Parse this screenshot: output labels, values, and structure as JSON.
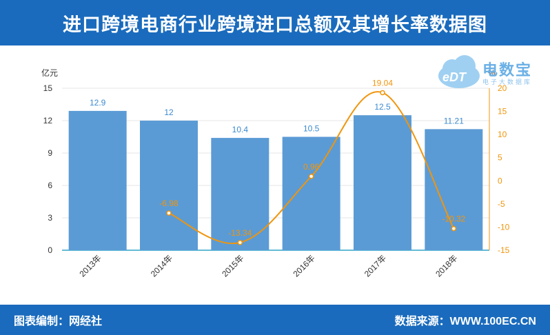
{
  "header": {
    "title": "进口跨境电商行业跨境进口总额及其增长率数据图"
  },
  "footer": {
    "left": "图表编制：网经社",
    "right": "数据来源：WWW.100EC.CN"
  },
  "logo": {
    "brand": "电数宝",
    "sub": "电子大数据库",
    "mark": "eDT"
  },
  "colors": {
    "header_bg": "#1a6bbd",
    "bar": "#5b9bd5",
    "line": "#f0950c",
    "bar_label": "#3b8ad0"
  },
  "chart_data": {
    "type": "bar+line",
    "categories": [
      "2013年",
      "2014年",
      "2015年",
      "2016年",
      "2017年",
      "2018年"
    ],
    "series": [
      {
        "type": "bar",
        "axis": "left",
        "values": [
          12.9,
          12,
          10.4,
          10.5,
          12.5,
          11.21
        ],
        "labels": [
          "12.9",
          "12",
          "10.4",
          "10.5",
          "12.5",
          "11.21"
        ]
      },
      {
        "type": "line",
        "axis": "right",
        "values": [
          null,
          -6.98,
          -13.34,
          0.96,
          19.04,
          -10.32
        ],
        "labels": [
          "",
          "-6.98",
          "-13.34",
          "0.96",
          "19.04",
          "-10.32"
        ]
      }
    ],
    "y_left": {
      "unit": "亿元",
      "min": 0,
      "max": 15,
      "ticks": [
        0,
        3,
        6,
        9,
        12,
        15
      ]
    },
    "y_right": {
      "unit": "%",
      "min": -15,
      "max": 20,
      "ticks": [
        -15,
        -10,
        -5,
        0,
        5,
        10,
        15,
        20
      ]
    },
    "grid": true,
    "legend": "none"
  }
}
